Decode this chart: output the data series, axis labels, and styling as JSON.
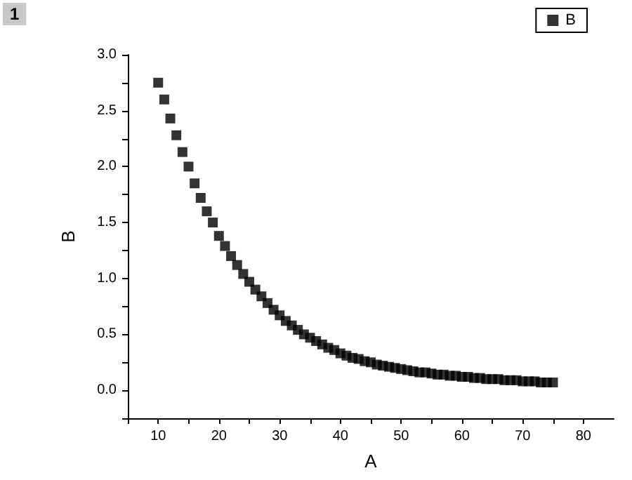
{
  "chart_data": {
    "type": "scatter",
    "xlabel": "A",
    "ylabel": "B",
    "annotations": [
      "1"
    ],
    "legend": "top right",
    "marker": "square",
    "grid": false,
    "xlim": [
      5,
      85
    ],
    "ylim": [
      -0.25,
      3.0
    ],
    "xticks": [
      {
        "value": 5,
        "label": null
      },
      10,
      {
        "value": 15,
        "label": null
      },
      20,
      {
        "value": 25,
        "label": null
      },
      30,
      {
        "value": 35,
        "label": null
      },
      40,
      {
        "value": 45,
        "label": null
      },
      50,
      {
        "value": 55,
        "label": null
      },
      60,
      {
        "value": 65,
        "label": null
      },
      70,
      {
        "value": 75,
        "label": null
      },
      80
    ],
    "yticks": [
      {
        "value": -0.25,
        "label": null
      },
      {
        "value": 0,
        "label": "0.0"
      },
      {
        "value": 0.25,
        "label": null
      },
      0.5,
      {
        "value": 0.75,
        "label": null
      },
      {
        "value": 1,
        "label": "1.0"
      },
      {
        "value": 1.25,
        "label": null
      },
      1.5,
      {
        "value": 1.75,
        "label": null
      },
      {
        "value": 2,
        "label": "2.0"
      },
      {
        "value": 2.25,
        "label": null
      },
      2.5,
      {
        "value": 2.75,
        "label": null
      },
      {
        "value": 3,
        "label": "3.0"
      }
    ],
    "x": [
      10,
      11,
      12,
      13,
      14,
      15,
      16,
      17,
      18,
      19,
      20,
      21,
      22,
      23,
      24,
      25,
      26,
      27,
      28,
      29,
      30,
      31,
      32,
      33,
      34,
      35,
      36,
      37,
      38,
      39,
      40,
      41,
      42,
      43,
      44,
      45,
      46,
      47,
      48,
      49,
      50,
      51,
      52,
      53,
      54,
      55,
      56,
      57,
      58,
      59,
      60,
      61,
      62,
      63,
      64,
      65,
      66,
      67,
      68,
      69,
      70,
      71,
      72,
      73,
      74,
      75
    ],
    "series": [
      {
        "name": "B",
        "color": "#000000",
        "values": [
          2.75,
          2.6,
          2.43,
          2.28,
          2.13,
          2.0,
          1.85,
          1.72,
          1.6,
          1.5,
          1.38,
          1.29,
          1.2,
          1.12,
          1.04,
          0.97,
          0.9,
          0.84,
          0.78,
          0.72,
          0.67,
          0.62,
          0.58,
          0.54,
          0.5,
          0.47,
          0.44,
          0.41,
          0.38,
          0.36,
          0.33,
          0.31,
          0.29,
          0.28,
          0.26,
          0.25,
          0.23,
          0.22,
          0.21,
          0.2,
          0.19,
          0.18,
          0.17,
          0.16,
          0.16,
          0.15,
          0.14,
          0.14,
          0.13,
          0.13,
          0.12,
          0.12,
          0.11,
          0.11,
          0.1,
          0.1,
          0.1,
          0.09,
          0.09,
          0.09,
          0.08,
          0.08,
          0.08,
          0.07,
          0.07,
          0.07
        ]
      }
    ]
  }
}
